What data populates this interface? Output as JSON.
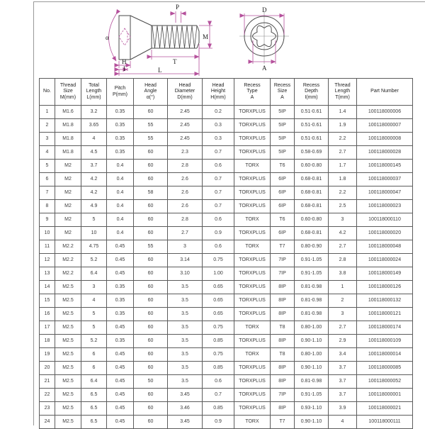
{
  "diagram": {
    "colors": {
      "outline": "#4a4a4a",
      "dimension": "#b5519c",
      "centerline": "#8a8a8a"
    },
    "side_view": {
      "labels": {
        "head_angle": "α",
        "pitch": "P",
        "thread_diameter": "M",
        "thread_length": "T",
        "head_height": "H",
        "recess_depth": "I",
        "total_length": "L"
      }
    },
    "top_view": {
      "labels": {
        "head_diameter": "D",
        "recess_size": "A"
      }
    }
  },
  "table": {
    "headers": [
      "No.",
      "Thread\nSize\nM(mm)",
      "Total\nLength\nL(mm)",
      "Pitch\nP(mm)",
      "Head\nAngle\nα(°)",
      "Head\nDiameter\nD(mm)",
      "Head\nHeight\nH(mm)",
      "Recess\nType\nA",
      "Recess\nSize\nA",
      "Recess\nDepth\nI(mm)",
      "Thread\nLength\nT(mm)",
      "Part Number"
    ],
    "rows": [
      [
        "1",
        "M1.6",
        "3.2",
        "0.35",
        "60",
        "2.45",
        "0.2",
        "TORXPLUS",
        "5IP",
        "0.51-0.61",
        "1.4",
        "100118000006"
      ],
      [
        "2",
        "M1.8",
        "3.65",
        "0.35",
        "55",
        "2.45",
        "0.3",
        "TORXPLUS",
        "5IP",
        "0.51-0.61",
        "1.9",
        "100118000007"
      ],
      [
        "3",
        "M1.8",
        "4",
        "0.35",
        "55",
        "2.45",
        "0.3",
        "TORXPLUS",
        "5IP",
        "0.51-0.61",
        "2.2",
        "100118000008"
      ],
      [
        "4",
        "M1.8",
        "4.5",
        "0.35",
        "60",
        "2.3",
        "0.7",
        "TORXPLUS",
        "5IP",
        "0.58-0.69",
        "2.7",
        "100118000028"
      ],
      [
        "5",
        "M2",
        "3.7",
        "0.4",
        "60",
        "2.8",
        "0.6",
        "TORX",
        "T6",
        "0.60-0.80",
        "1.7",
        "100118000145"
      ],
      [
        "6",
        "M2",
        "4.2",
        "0.4",
        "60",
        "2.6",
        "0.7",
        "TORXPLUS",
        "6IP",
        "0.68-0.81",
        "1.8",
        "100118000037"
      ],
      [
        "7",
        "M2",
        "4.2",
        "0.4",
        "58",
        "2.6",
        "0.7",
        "TORXPLUS",
        "6IP",
        "0.68-0.81",
        "2.2",
        "100118000047"
      ],
      [
        "8",
        "M2",
        "4.9",
        "0.4",
        "60",
        "2.6",
        "0.7",
        "TORXPLUS",
        "6IP",
        "0.68-0.81",
        "2.5",
        "100118000023"
      ],
      [
        "9",
        "M2",
        "5",
        "0.4",
        "60",
        "2.8",
        "0.6",
        "TORX",
        "T6",
        "0.60-0.80",
        "3",
        "100118000110"
      ],
      [
        "10",
        "M2",
        "10",
        "0.4",
        "60",
        "2.7",
        "0.9",
        "TORXPLUS",
        "6IP",
        "0.68-0.81",
        "4.2",
        "100118000020"
      ],
      [
        "11",
        "M2.2",
        "4.75",
        "0.45",
        "55",
        "3",
        "0.6",
        "TORX",
        "T7",
        "0.80-0.90",
        "2.7",
        "100118000048"
      ],
      [
        "12",
        "M2.2",
        "5.2",
        "0.45",
        "60",
        "3.14",
        "0.75",
        "TORXPLUS",
        "7IP",
        "0.91-1.05",
        "2.8",
        "100118000024"
      ],
      [
        "13",
        "M2.2",
        "6.4",
        "0.45",
        "60",
        "3.10",
        "1.00",
        "TORXPLUS",
        "7IP",
        "0.91-1.05",
        "3.8",
        "100118000149"
      ],
      [
        "14",
        "M2.5",
        "3",
        "0.35",
        "60",
        "3.5",
        "0.65",
        "TORXPLUS",
        "8IP",
        "0.81-0.98",
        "1",
        "100118000126"
      ],
      [
        "15",
        "M2.5",
        "4",
        "0.35",
        "60",
        "3.5",
        "0.65",
        "TORXPLUS",
        "8IP",
        "0.81-0.98",
        "2",
        "100118000132"
      ],
      [
        "16",
        "M2.5",
        "5",
        "0.35",
        "60",
        "3.5",
        "0.65",
        "TORXPLUS",
        "8IP",
        "0.81-0.98",
        "3",
        "100118000121"
      ],
      [
        "17",
        "M2.5",
        "5",
        "0.45",
        "60",
        "3.5",
        "0.75",
        "TORX",
        "T8",
        "0.80-1.00",
        "2.7",
        "100118000174"
      ],
      [
        "18",
        "M2.5",
        "5.2",
        "0.35",
        "60",
        "3.5",
        "0.85",
        "TORXPLUS",
        "8IP",
        "0.90-1.10",
        "2.9",
        "100118000109"
      ],
      [
        "19",
        "M2.5",
        "6",
        "0.45",
        "60",
        "3.5",
        "0.75",
        "TORX",
        "T8",
        "0.80-1.00",
        "3.4",
        "100118000014"
      ],
      [
        "20",
        "M2.5",
        "6",
        "0.45",
        "60",
        "3.5",
        "0.85",
        "TORXPLUS",
        "8IP",
        "0.90-1.10",
        "3.7",
        "100118000085"
      ],
      [
        "21",
        "M2.5",
        "6.4",
        "0.45",
        "50",
        "3.5",
        "0.6",
        "TORXPLUS",
        "8IP",
        "0.81-0.98",
        "3.7",
        "100118000052"
      ],
      [
        "22",
        "M2.5",
        "6.5",
        "0.45",
        "60",
        "3.45",
        "0.7",
        "TORXPLUS",
        "7IP",
        "0.91-1.05",
        "3.7",
        "100118000001"
      ],
      [
        "23",
        "M2.5",
        "6.5",
        "0.45",
        "60",
        "3.46",
        "0.85",
        "TORXPLUS",
        "8IP",
        "0.93-1.10",
        "3.9",
        "100118000021"
      ],
      [
        "24",
        "M2.5",
        "6.5",
        "0.45",
        "60",
        "3.45",
        "0.9",
        "TORX",
        "T7",
        "0.90-1.10",
        "4",
        "100118000111"
      ]
    ]
  }
}
